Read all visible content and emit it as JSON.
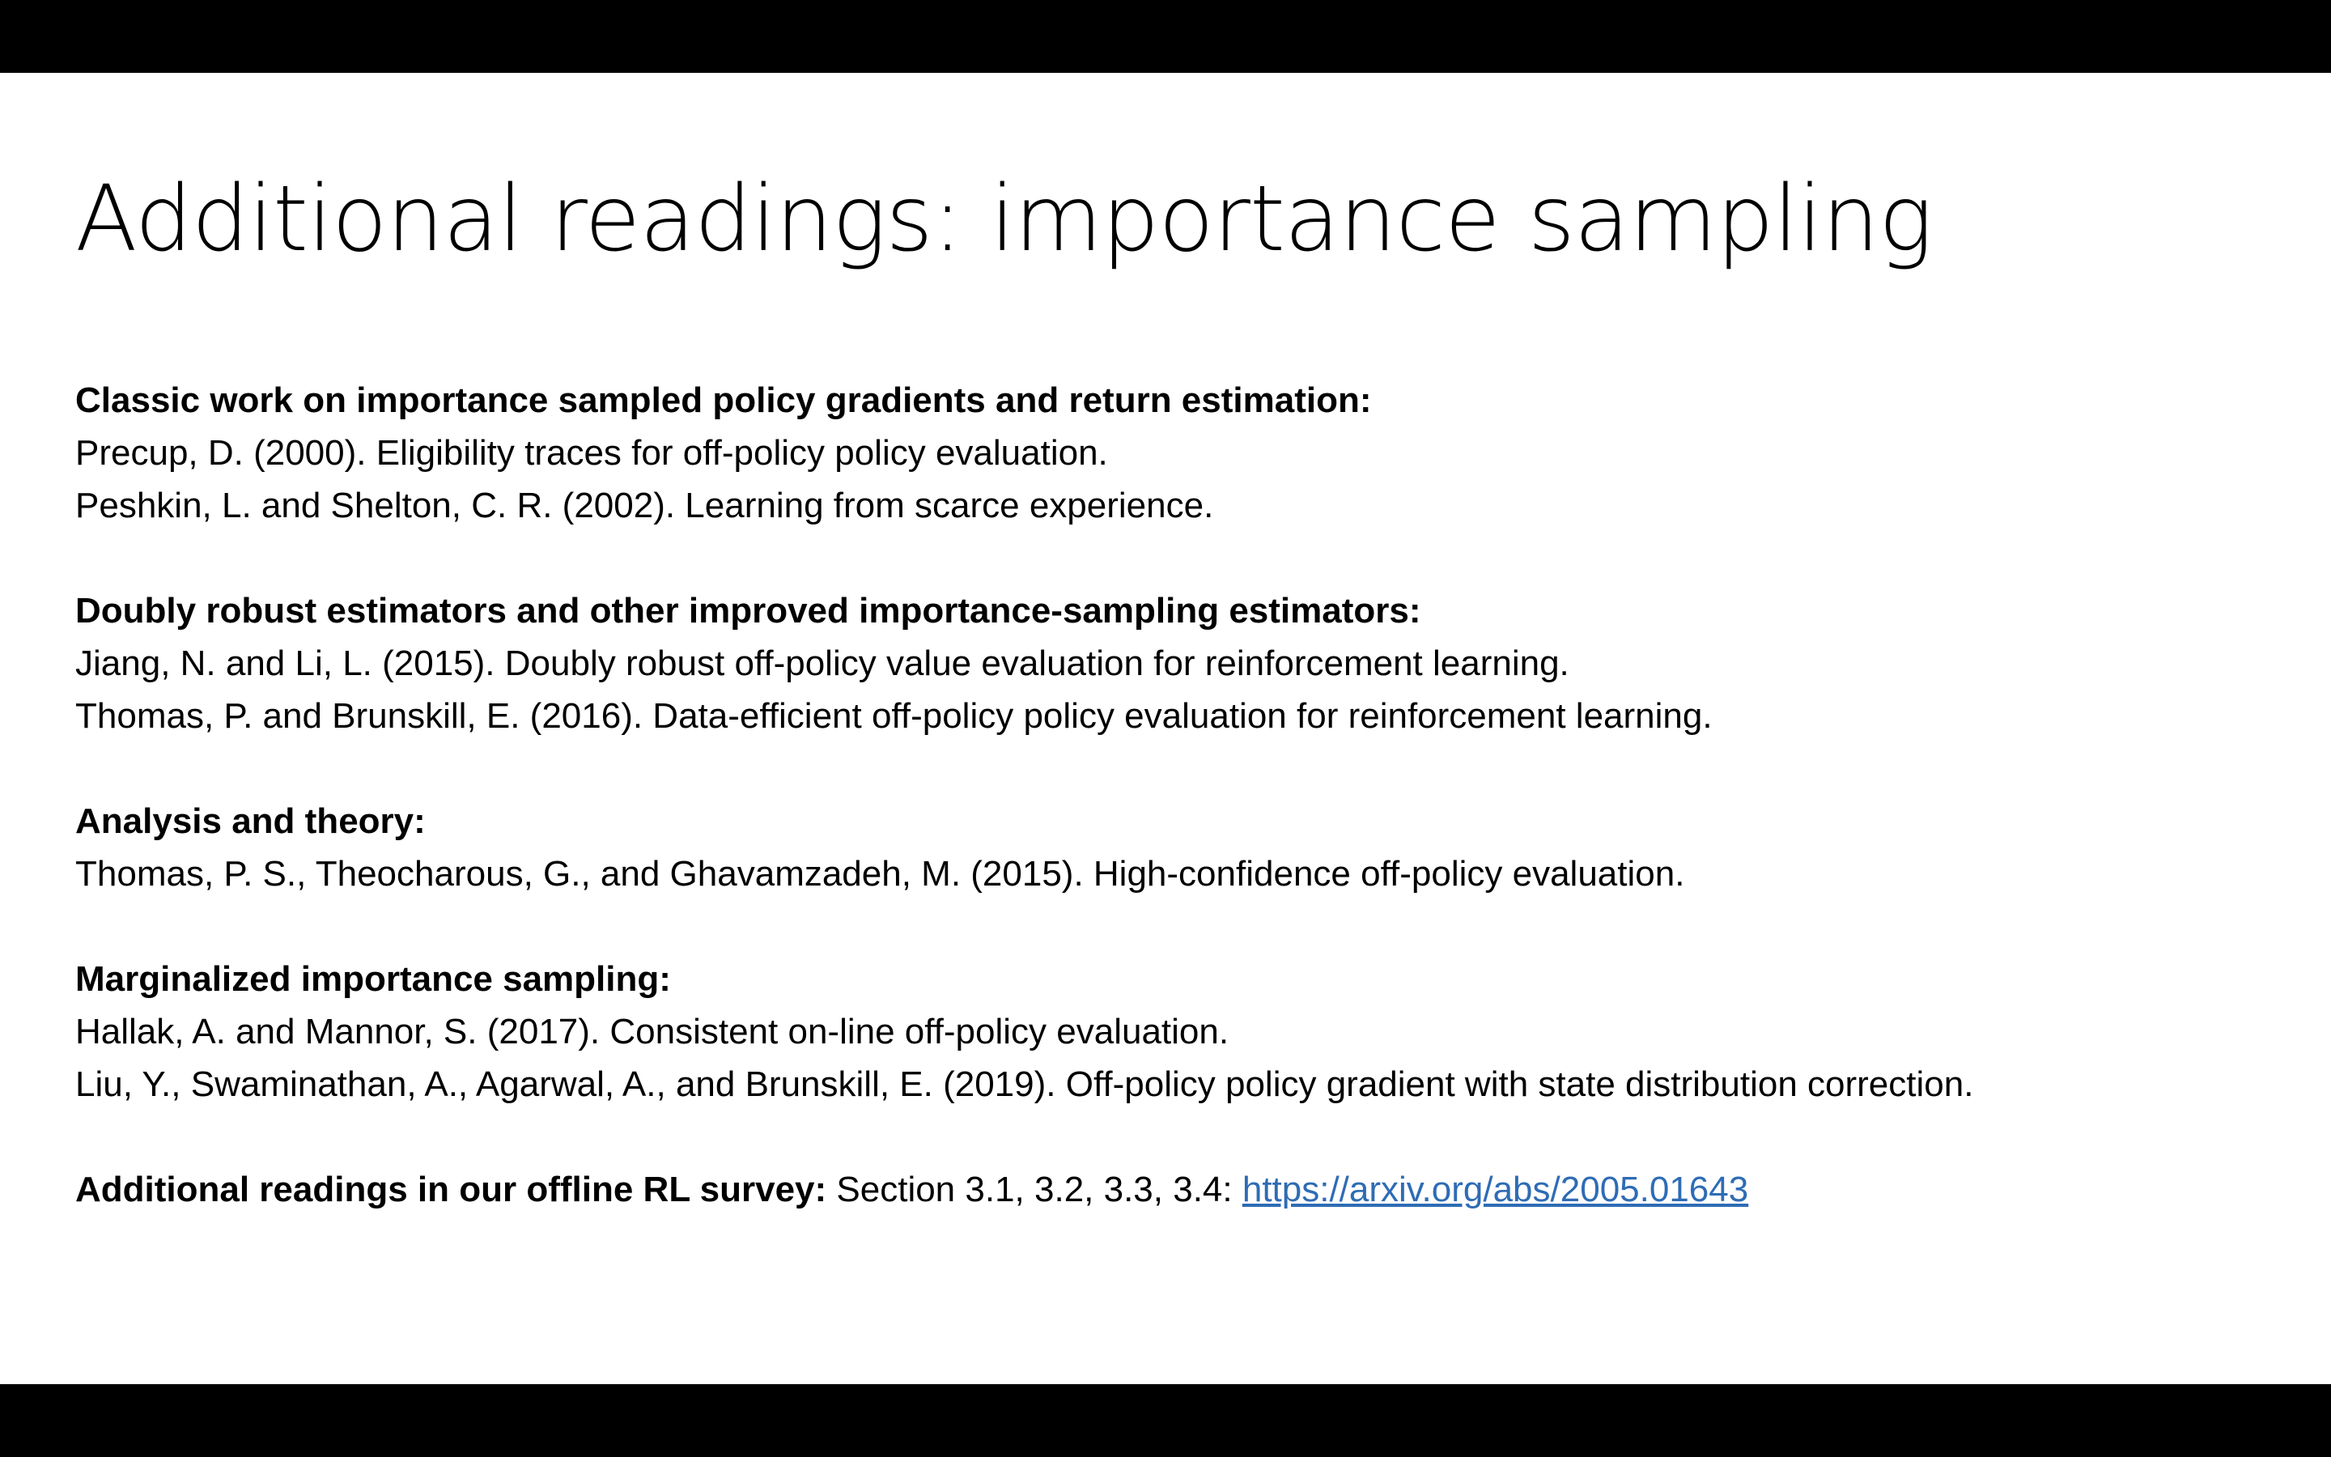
{
  "title": "Additional readings: importance sampling",
  "sections": [
    {
      "heading": "Classic work on importance sampled policy gradients and return estimation:",
      "refs": [
        "Precup, D. (2000). Eligibility traces for off-policy policy evaluation.",
        "Peshkin, L. and Shelton, C. R. (2002). Learning from scarce experience."
      ]
    },
    {
      "heading": "Doubly robust estimators and other improved importance-sampling estimators:",
      "refs": [
        "Jiang, N. and Li, L. (2015). Doubly robust off-policy value evaluation for reinforcement learning.",
        "Thomas, P. and Brunskill, E. (2016). Data-efficient off-policy policy evaluation for reinforcement learning."
      ]
    },
    {
      "heading": "Analysis and theory:",
      "refs": [
        "Thomas, P. S., Theocharous, G., and Ghavamzadeh, M. (2015). High-confidence off-policy evaluation."
      ]
    },
    {
      "heading": "Marginalized importance sampling:",
      "refs": [
        "Hallak, A. and Mannor, S. (2017). Consistent on-line off-policy evaluation.",
        "Liu, Y., Swaminathan, A., Agarwal, A., and Brunskill, E. (2019). Off-policy policy gradient with state distribution correction."
      ]
    }
  ],
  "survey": {
    "label": "Additional readings in our offline RL survey:",
    "text": " Section 3.1, 3.2, 3.3, 3.4: ",
    "link": "https://arxiv.org/abs/2005.01643"
  },
  "colors": {
    "link": "#2e6cb5",
    "letterbox": "#000000",
    "slide_background": "#ffffff"
  }
}
